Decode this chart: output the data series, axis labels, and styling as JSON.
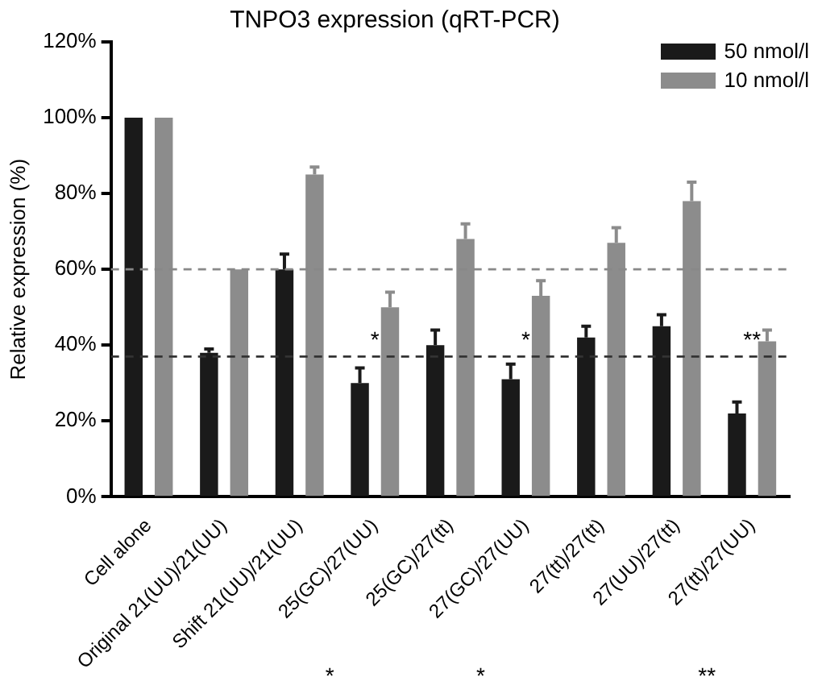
{
  "chart_data": {
    "type": "bar",
    "title": "TNPO3 expression (qRT-PCR)",
    "ylabel": "Relative expression (%)",
    "categories": [
      "Cell alone",
      "Original 21(UU)/21(UU)",
      "Shift 21(UU)/21(UU)",
      "25(GC)/27(UU)",
      "25(GC)/27(tt)",
      "27(GC)/27(UU)",
      "27(tt)/27(tt)",
      "27(UU)/27(tt)",
      "27(tt)/27(UU)"
    ],
    "series": [
      {
        "name": "50 nmol/l",
        "color": "#1a1a1a",
        "values": [
          100,
          38,
          60,
          30,
          40,
          31,
          42,
          45,
          22
        ],
        "errors": [
          null,
          [
            38,
            39
          ],
          [
            60,
            64
          ],
          [
            30,
            34
          ],
          [
            40,
            44
          ],
          [
            31,
            35
          ],
          [
            42,
            45
          ],
          [
            45,
            48
          ],
          [
            22,
            25
          ]
        ]
      },
      {
        "name": "10 nmol/l",
        "color": "#8c8c8c",
        "values": [
          100,
          60,
          85,
          50,
          68,
          53,
          67,
          78,
          41
        ],
        "errors": [
          null,
          null,
          [
            85,
            87
          ],
          [
            50,
            54
          ],
          [
            68,
            72
          ],
          [
            53,
            57
          ],
          [
            67,
            71
          ],
          [
            78,
            83
          ],
          [
            41,
            44
          ]
        ]
      }
    ],
    "ylim": [
      0,
      120
    ],
    "yticks": [
      {
        "value": 0,
        "label": "0%"
      },
      {
        "value": 20,
        "label": "20%"
      },
      {
        "value": 40,
        "label": "40%"
      },
      {
        "value": 60,
        "label": "60%"
      },
      {
        "value": 80,
        "label": "80%"
      },
      {
        "value": 100,
        "label": "100%"
      },
      {
        "value": 120,
        "label": "120%"
      }
    ],
    "ref_lines": [
      {
        "axis": "y",
        "value": 60,
        "color": "#888888",
        "line_style": "dashed"
      },
      {
        "axis": "y",
        "value": 37,
        "color": "#333333",
        "line_style": "dashed"
      }
    ],
    "annotations": [
      {
        "text": "*",
        "x": "25(GC)/27(UU)",
        "y": 38
      },
      {
        "text": "*",
        "x": "27(GC)/27(UU)",
        "y": 38
      },
      {
        "text": "**",
        "x": "27(tt)/27(UU)",
        "y": 38
      },
      "*",
      "*",
      "**"
    ],
    "legend": "top right",
    "grid": false
  }
}
